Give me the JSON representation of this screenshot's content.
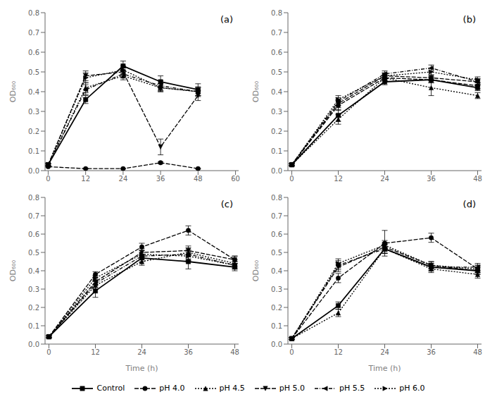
{
  "chart_data": [
    {
      "type": "line",
      "title": "(a)",
      "y_label": "OD₆₀₀",
      "x": [
        0,
        12,
        24,
        36,
        48
      ],
      "xlim": [
        -1,
        61
      ],
      "xticks": [
        0,
        12,
        24,
        36,
        48,
        60
      ],
      "ylim": [
        0.0,
        0.8
      ],
      "yticks": [
        {
          "value": 0.0,
          "label": "0.0"
        },
        0.1,
        0.2,
        0.3,
        0.4,
        0.5,
        0.6,
        0.7,
        0.8
      ],
      "grid": false,
      "series": [
        {
          "name": "Control",
          "color": "black",
          "marker": "square",
          "line_style": "solid",
          "values": [
            0.03,
            0.36,
            0.53,
            0.45,
            0.41
          ],
          "errors": [
            0.005,
            0.02,
            0.025,
            0.03,
            0.03
          ]
        },
        {
          "name": "pH 4.0",
          "color": "black",
          "marker": "circle",
          "line_style": "dashed",
          "values": [
            0.02,
            0.01,
            0.01,
            0.04,
            0.01
          ],
          "errors": [
            0.003,
            0.002,
            0.002,
            0.005,
            0.002
          ]
        },
        {
          "name": "pH 4.5",
          "color": "black",
          "marker": "triangle-up",
          "line_style": "dotted",
          "values": [
            0.03,
            0.42,
            0.48,
            0.42,
            0.4
          ],
          "errors": [
            0.005,
            0.025,
            0.02,
            0.02,
            0.02
          ]
        },
        {
          "name": "pH 5.0",
          "color": "black",
          "marker": "triangle-down",
          "line_style": "dashed",
          "values": [
            0.03,
            0.48,
            0.5,
            0.12,
            0.38
          ],
          "errors": [
            0.005,
            0.025,
            0.02,
            0.04,
            0.025
          ]
        },
        {
          "name": "pH 5.5",
          "color": "black",
          "marker": "triangle-left",
          "line_style": "dashdot",
          "values": [
            0.03,
            0.41,
            0.49,
            0.43,
            0.4
          ],
          "errors": [
            0.005,
            0.025,
            0.02,
            0.025,
            0.025
          ]
        },
        {
          "name": "pH 6.0",
          "color": "black",
          "marker": "triangle-right",
          "line_style": "dotted",
          "values": [
            0.03,
            0.47,
            0.51,
            0.42,
            0.4
          ],
          "errors": [
            0.005,
            0.025,
            0.02,
            0.02,
            0.02
          ]
        }
      ]
    },
    {
      "type": "line",
      "title": "(b)",
      "y_label": "OD₆₀₀",
      "x": [
        0,
        12,
        24,
        36,
        48
      ],
      "xlim": [
        -1,
        49
      ],
      "xticks": [
        0,
        12,
        24,
        36,
        48
      ],
      "ylim": [
        0.0,
        0.8
      ],
      "yticks": [
        {
          "value": 0.0,
          "label": "0.0"
        },
        0.1,
        0.2,
        0.3,
        0.4,
        0.5,
        0.6,
        0.7,
        0.8
      ],
      "grid": false,
      "series": [
        {
          "name": "Control",
          "color": "black",
          "marker": "square",
          "line_style": "solid",
          "values": [
            0.03,
            0.28,
            0.45,
            0.46,
            0.42
          ],
          "errors": [
            0.005,
            0.03,
            0.015,
            0.015,
            0.015
          ]
        },
        {
          "name": "pH 4.0",
          "color": "black",
          "marker": "circle",
          "line_style": "dashed",
          "values": [
            0.03,
            0.33,
            0.47,
            0.46,
            0.43
          ],
          "errors": [
            0.005,
            0.025,
            0.015,
            0.015,
            0.015
          ]
        },
        {
          "name": "pH 4.5",
          "color": "black",
          "marker": "triangle-up",
          "line_style": "dotted",
          "values": [
            0.03,
            0.26,
            0.47,
            0.42,
            0.38
          ],
          "errors": [
            0.005,
            0.025,
            0.015,
            0.04,
            0.015
          ]
        },
        {
          "name": "pH 5.0",
          "color": "black",
          "marker": "triangle-down",
          "line_style": "dashed",
          "values": [
            0.03,
            0.34,
            0.48,
            0.47,
            0.45
          ],
          "errors": [
            0.005,
            0.02,
            0.015,
            0.015,
            0.015
          ]
        },
        {
          "name": "pH 5.5",
          "color": "black",
          "marker": "triangle-left",
          "line_style": "dashdot",
          "values": [
            0.03,
            0.35,
            0.49,
            0.52,
            0.45
          ],
          "errors": [
            0.005,
            0.02,
            0.015,
            0.015,
            0.015
          ]
        },
        {
          "name": "pH 6.0",
          "color": "black",
          "marker": "triangle-right",
          "line_style": "dotted",
          "values": [
            0.03,
            0.36,
            0.48,
            0.5,
            0.46
          ],
          "errors": [
            0.005,
            0.02,
            0.015,
            0.015,
            0.015
          ]
        }
      ]
    },
    {
      "type": "line",
      "title": "(c)",
      "x_label": "Time (h)",
      "y_label": "OD₆₀₀",
      "x": [
        0,
        12,
        24,
        36,
        48
      ],
      "xlim": [
        -1,
        49
      ],
      "xticks": [
        0,
        12,
        24,
        36,
        48
      ],
      "ylim": [
        0.0,
        0.8
      ],
      "yticks": [
        {
          "value": 0.0,
          "label": "0.0"
        },
        0.1,
        0.2,
        0.3,
        0.4,
        0.5,
        0.6,
        0.7,
        0.8
      ],
      "grid": false,
      "series": [
        {
          "name": "Control",
          "color": "black",
          "marker": "square",
          "line_style": "solid",
          "values": [
            0.04,
            0.29,
            0.47,
            0.45,
            0.42
          ],
          "errors": [
            0.005,
            0.035,
            0.02,
            0.04,
            0.02
          ]
        },
        {
          "name": "pH 4.0",
          "color": "black",
          "marker": "circle",
          "line_style": "dashed",
          "values": [
            0.04,
            0.38,
            0.53,
            0.62,
            0.46
          ],
          "errors": [
            0.005,
            0.015,
            0.02,
            0.025,
            0.02
          ]
        },
        {
          "name": "pH 4.5",
          "color": "black",
          "marker": "triangle-up",
          "line_style": "dotted",
          "values": [
            0.04,
            0.32,
            0.45,
            0.5,
            0.44
          ],
          "errors": [
            0.005,
            0.02,
            0.02,
            0.025,
            0.02
          ]
        },
        {
          "name": "pH 5.0",
          "color": "black",
          "marker": "triangle-down",
          "line_style": "dashed",
          "values": [
            0.04,
            0.34,
            0.5,
            0.51,
            0.46
          ],
          "errors": [
            0.005,
            0.02,
            0.02,
            0.025,
            0.02
          ]
        },
        {
          "name": "pH 5.5",
          "color": "black",
          "marker": "triangle-left",
          "line_style": "dashdot",
          "values": [
            0.04,
            0.33,
            0.48,
            0.49,
            0.43
          ],
          "errors": [
            0.005,
            0.02,
            0.02,
            0.025,
            0.02
          ]
        },
        {
          "name": "pH 6.0",
          "color": "black",
          "marker": "triangle-right",
          "line_style": "dotted",
          "values": [
            0.04,
            0.36,
            0.49,
            0.48,
            0.43
          ],
          "errors": [
            0.005,
            0.015,
            0.02,
            0.025,
            0.02
          ]
        }
      ]
    },
    {
      "type": "line",
      "title": "(d)",
      "x_label": "Time (h)",
      "y_label": "OD₆₀₀",
      "x": [
        0,
        12,
        24,
        36,
        48
      ],
      "xlim": [
        -1,
        49
      ],
      "xticks": [
        0,
        12,
        24,
        36,
        48
      ],
      "ylim": [
        0.0,
        0.8
      ],
      "yticks": [
        {
          "value": 0.0,
          "label": "0.0"
        },
        0.1,
        0.2,
        0.3,
        0.4,
        0.5,
        0.6,
        0.7,
        0.8
      ],
      "grid": false,
      "series": [
        {
          "name": "Control",
          "color": "black",
          "marker": "square",
          "line_style": "solid",
          "values": [
            0.03,
            0.21,
            0.52,
            0.42,
            0.4
          ],
          "errors": [
            0.005,
            0.02,
            0.025,
            0.02,
            0.02
          ]
        },
        {
          "name": "pH 4.0",
          "color": "black",
          "marker": "circle",
          "line_style": "dashed",
          "values": [
            0.03,
            0.36,
            0.55,
            0.58,
            0.41
          ],
          "errors": [
            0.005,
            0.025,
            0.07,
            0.025,
            0.02
          ]
        },
        {
          "name": "pH 4.5",
          "color": "black",
          "marker": "triangle-up",
          "line_style": "dotted",
          "values": [
            0.03,
            0.17,
            0.52,
            0.41,
            0.38
          ],
          "errors": [
            0.005,
            0.02,
            0.025,
            0.02,
            0.02
          ]
        },
        {
          "name": "pH 5.0",
          "color": "black",
          "marker": "triangle-down",
          "line_style": "dashed",
          "values": [
            0.03,
            0.42,
            0.53,
            0.43,
            0.4
          ],
          "errors": [
            0.005,
            0.025,
            0.025,
            0.02,
            0.02
          ]
        },
        {
          "name": "pH 5.5",
          "color": "black",
          "marker": "triangle-left",
          "line_style": "dashdot",
          "values": [
            0.03,
            0.43,
            0.52,
            0.42,
            0.42
          ],
          "errors": [
            0.005,
            0.025,
            0.025,
            0.02,
            0.02
          ]
        },
        {
          "name": "pH 6.0",
          "color": "black",
          "marker": "triangle-right",
          "line_style": "dotted",
          "values": [
            0.03,
            0.44,
            0.54,
            0.43,
            0.41
          ],
          "errors": [
            0.005,
            0.025,
            0.025,
            0.02,
            0.02
          ]
        }
      ]
    }
  ]
}
